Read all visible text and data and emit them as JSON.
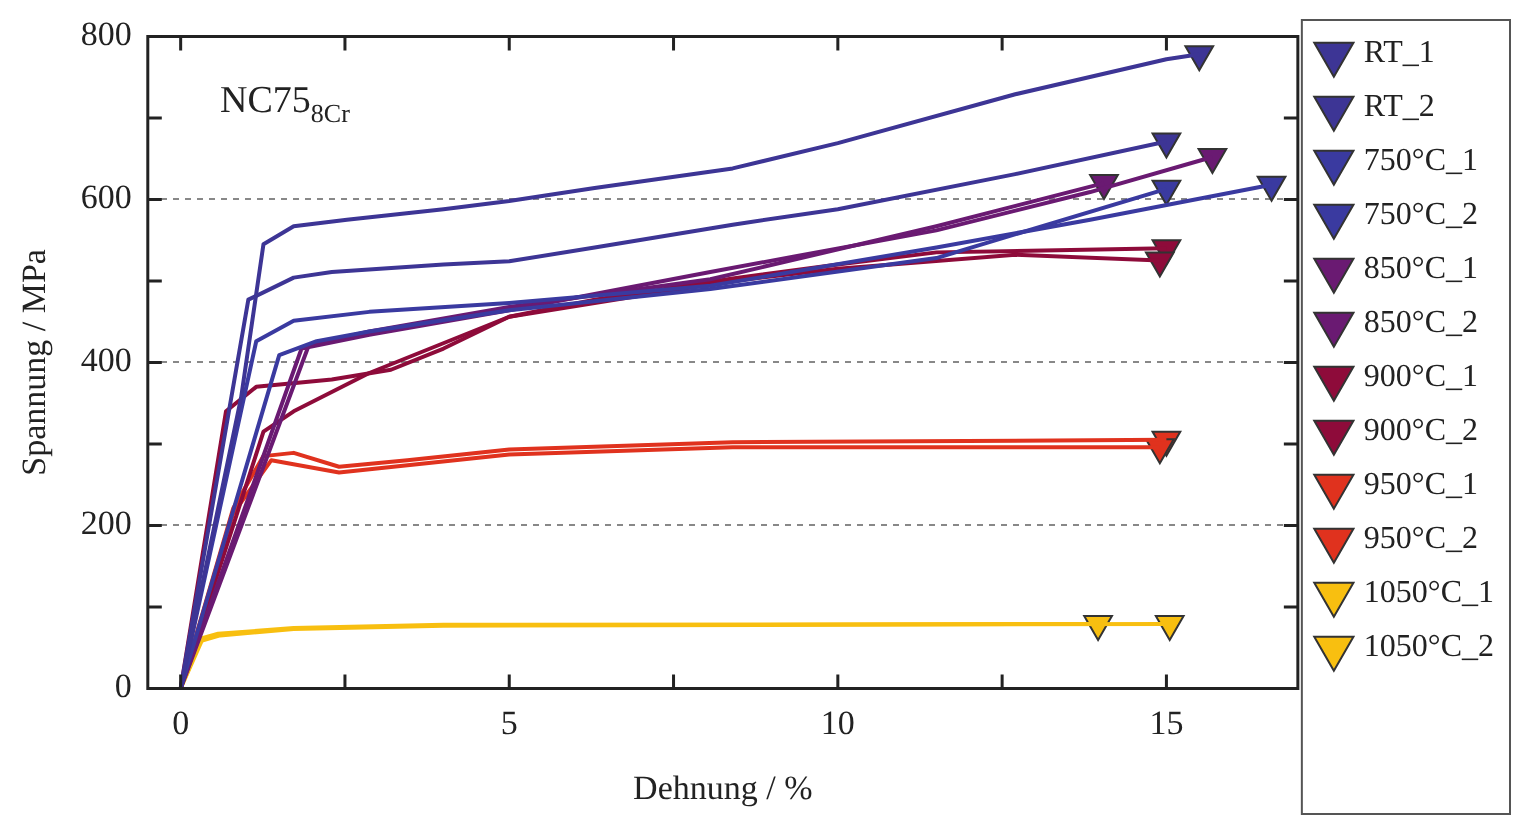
{
  "chart_data": {
    "type": "line",
    "xlabel": "Dehnung / %",
    "ylabel": "Spannung / MPa",
    "annotations": [
      "NC75$_{8Cr}$"
    ],
    "xlim": [
      -0.5,
      17
    ],
    "xticks": [
      0,
      {
        "value": 2.5,
        "label": null
      },
      5,
      {
        "value": 7.5,
        "label": null
      },
      10,
      {
        "value": 12.5,
        "label": null
      },
      15
    ],
    "ylim": [
      0,
      800
    ],
    "yticks": [
      0,
      {
        "value": 100,
        "label": null
      },
      200,
      {
        "value": 300,
        "label": null
      },
      400,
      {
        "value": 500,
        "label": null
      },
      600,
      {
        "value": 700,
        "label": null
      },
      800
    ],
    "grid": "y",
    "legend": "right",
    "marker": "none",
    "line_style": "solid",
    "series": [
      {
        "name": "RT_1",
        "color": "#3d3595",
        "x": [
          0,
          0.92,
          1.26,
          1.72,
          2.53,
          4.0,
          5,
          6.3,
          8.4,
          10,
          12.7,
          15,
          15.5
        ],
        "values": [
          0,
          357,
          545,
          567,
          575,
          588,
          598,
          614,
          638,
          669,
          729,
          772,
          778
        ]
      },
      {
        "name": "RT_2",
        "color": "#3d3595",
        "x": [
          0,
          1.03,
          1.72,
          2.3,
          4.0,
          5,
          6.3,
          8.4,
          10,
          12.7,
          15
        ],
        "values": [
          0,
          477,
          504,
          511,
          520,
          524,
          541,
          569,
          588,
          631,
          671
        ]
      },
      {
        "name": "750°C_1",
        "color": "#3a3aa0",
        "x": [
          0,
          1.15,
          1.72,
          2.87,
          5,
          8.06,
          11.5,
          13.84,
          16.6
        ],
        "values": [
          0,
          426,
          451,
          462,
          473,
          494,
          541,
          575,
          618
        ]
      },
      {
        "name": "750°C_2",
        "color": "#3a3aa0",
        "x": [
          0,
          1.5,
          2.07,
          2.87,
          5,
          8.06,
          11.5,
          15
        ],
        "values": [
          0,
          409,
          426,
          438,
          464,
          490,
          528,
          613
        ]
      },
      {
        "name": "850°C_1",
        "color": "#6a1a72",
        "x": [
          0,
          1.95,
          2.87,
          5,
          8.06,
          11.5,
          14.05
        ],
        "values": [
          0,
          421,
          438,
          468,
          502,
          567,
          620
        ]
      },
      {
        "name": "850°C_2",
        "color": "#6a1a72",
        "x": [
          0,
          1.84,
          2.87,
          5,
          8.06,
          11.5,
          13.84,
          15.7
        ],
        "values": [
          0,
          417,
          434,
          464,
          511,
          562,
          609,
          652
        ]
      },
      {
        "name": "900°C_1",
        "color": "#8e0b3a",
        "x": [
          0,
          0.69,
          1.15,
          2.3,
          3.2,
          4.0,
          5,
          6.3,
          8.4,
          10,
          11.5,
          15
        ],
        "values": [
          0,
          340,
          370,
          379,
          391,
          417,
          456,
          477,
          503,
          520,
          535,
          540
        ]
      },
      {
        "name": "900°C_2",
        "color": "#8e0b3a",
        "x": [
          0,
          1.26,
          1.72,
          2.87,
          5,
          8.4,
          10,
          12.7,
          14.9
        ],
        "values": [
          0,
          315,
          340,
          387,
          456,
          500,
          515,
          532,
          525
        ]
      },
      {
        "name": "950°C_1",
        "color": "#e0321e",
        "x": [
          0,
          0.8,
          1.26,
          1.72,
          2.41,
          3.45,
          5,
          8.4,
          15
        ],
        "values": [
          0,
          221,
          285,
          289,
          272,
          280,
          293,
          302,
          305
        ]
      },
      {
        "name": "950°C_2",
        "color": "#e0321e",
        "x": [
          0,
          0.8,
          1.38,
          2.41,
          5,
          8.4,
          14.9
        ],
        "values": [
          0,
          215,
          280,
          265,
          287,
          296,
          296
        ]
      },
      {
        "name": "1050°C_1",
        "color": "#f8bf10",
        "x": [
          0,
          0.34,
          0.57,
          1.72,
          4.0,
          13.96
        ],
        "values": [
          0,
          62,
          67,
          74,
          78,
          79
        ]
      },
      {
        "name": "1050°C_2",
        "color": "#f8bf10",
        "x": [
          0,
          0.3,
          0.6,
          1.72,
          4.0,
          15.05
        ],
        "values": [
          0,
          58,
          65,
          73,
          77,
          79
        ]
      },
      {
        "type": "scatter",
        "marker": "triangle",
        "color": "#3d3595",
        "x": [
          15.5,
          15
        ],
        "values": [
          778,
          671
        ]
      },
      {
        "type": "scatter",
        "marker": "triangle",
        "color": "#3a3aa0",
        "x": [
          16.6,
          15
        ],
        "values": [
          618,
          613
        ]
      },
      {
        "type": "scatter",
        "marker": "triangle",
        "color": "#6a1a72",
        "x": [
          14.05,
          15.7
        ],
        "values": [
          620,
          652
        ]
      },
      {
        "type": "scatter",
        "marker": "triangle",
        "color": "#8e0b3a",
        "x": [
          15,
          14.9
        ],
        "values": [
          540,
          525
        ]
      },
      {
        "type": "scatter",
        "marker": "triangle",
        "color": "#e0321e",
        "x": [
          15,
          14.9
        ],
        "values": [
          305,
          296
        ]
      },
      {
        "type": "scatter",
        "marker": "triangle",
        "color": "#f8bf10",
        "x": [
          13.96,
          15.05
        ],
        "values": [
          79,
          79
        ]
      }
    ]
  }
}
